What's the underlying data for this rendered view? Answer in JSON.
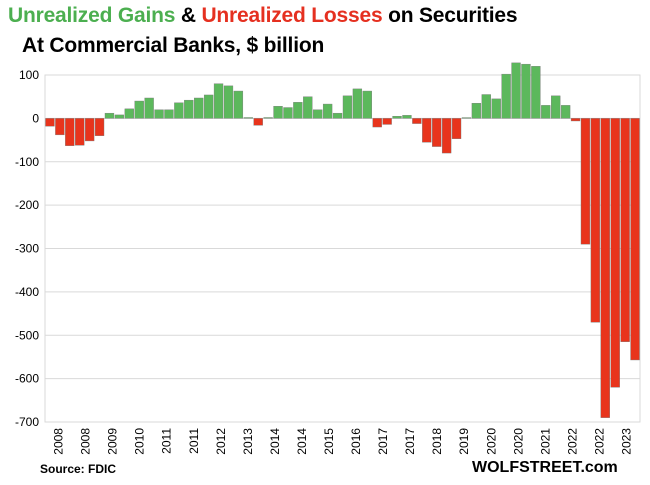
{
  "title": {
    "gains": "Unrealized Gains",
    "amp": "&",
    "losses": "Unrealized Losses",
    "rest": "on Securities",
    "subtitle": "At Commercial  Banks, $ billion"
  },
  "source": "Source: FDIC",
  "brand": "WOLFSTREET.com",
  "colors": {
    "gain": "#5cb85c",
    "loss": "#e8341c",
    "gain_title": "#4caf50",
    "loss_title": "#e53020",
    "grid": "#d9d9d9"
  },
  "chart_data": {
    "type": "bar",
    "title": "Unrealized Gains & Unrealized Losses on Securities — At Commercial Banks, $ billion",
    "xlabel": "",
    "ylabel": "",
    "ylim": [
      -700,
      100
    ],
    "yticks": [
      100,
      0,
      -100,
      -200,
      -300,
      -400,
      -500,
      -600,
      -700
    ],
    "year_labels": [
      "2008",
      "2008",
      "2009",
      "2010",
      "2011",
      "2011",
      "2012",
      "2013",
      "2014",
      "2014",
      "2015",
      "2016",
      "2017",
      "2017",
      "2018",
      "2019",
      "2020",
      "2020",
      "2021",
      "2022",
      "2022",
      "2023"
    ],
    "values": [
      -18,
      -38,
      -63,
      -62,
      -52,
      -40,
      12,
      8,
      22,
      40,
      47,
      20,
      20,
      36,
      42,
      47,
      54,
      80,
      75,
      63,
      2,
      -16,
      2,
      28,
      25,
      37,
      50,
      20,
      33,
      12,
      52,
      68,
      63,
      -20,
      -14,
      5,
      7,
      -12,
      -55,
      -65,
      -80,
      -47,
      0,
      35,
      55,
      45,
      102,
      128,
      125,
      120,
      30,
      52,
      30,
      -6,
      -290,
      -470,
      -690,
      -620,
      -515,
      -557
    ]
  }
}
